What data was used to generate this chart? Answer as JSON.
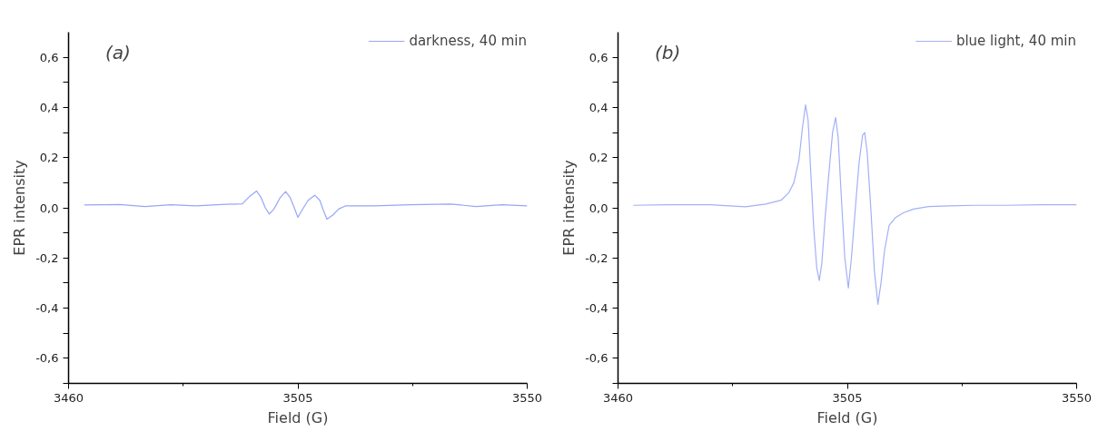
{
  "chart_data": [
    {
      "type": "line",
      "annotations": [
        "(a)"
      ],
      "xlabel": "Field (G)",
      "ylabel": "EPR intensity",
      "legend": "top right",
      "grid": false,
      "xlim": [
        3460,
        3550
      ],
      "xticks": [
        3460,
        3505,
        3550
      ],
      "ylim": [
        -0.7,
        0.7
      ],
      "yticks": [
        {
          "value": -0.7,
          "label": null
        },
        {
          "value": -0.6,
          "label": "-0,6"
        },
        {
          "value": -0.5,
          "label": null
        },
        {
          "value": -0.4,
          "label": "-0,4"
        },
        {
          "value": -0.3,
          "label": null
        },
        {
          "value": -0.2,
          "label": "-0,2"
        },
        {
          "value": -0.1,
          "label": null
        },
        {
          "value": 0,
          "label": "0,0"
        },
        {
          "value": 0.1,
          "label": null
        },
        {
          "value": 0.2,
          "label": "0,2"
        },
        {
          "value": 0.3,
          "label": null
        },
        {
          "value": 0.4,
          "label": "0,4"
        },
        {
          "value": 0.5,
          "label": null
        },
        {
          "value": 0.6,
          "label": "0,6"
        }
      ],
      "series": [
        {
          "name": "darkness, 40 min",
          "color": "#98a6f6",
          "x": [
            3463.1,
            3470,
            3475,
            3480,
            3485,
            3490,
            3494.1,
            3495.5,
            3496.9,
            3497.8,
            3498.6,
            3499.4,
            3500.3,
            3501.5,
            3502.6,
            3503.5,
            3504.3,
            3505.0,
            3505.8,
            3507,
            3508.3,
            3509.3,
            3510,
            3510.7,
            3511.8,
            3513,
            3514.4,
            3520,
            3527,
            3535,
            3540,
            3545,
            3550
          ],
          "values": [
            0.011,
            0.013,
            0.005,
            0.012,
            0.008,
            0.013,
            0.016,
            0.045,
            0.067,
            0.04,
            0.0,
            -0.025,
            -0.005,
            0.04,
            0.065,
            0.04,
            0.0,
            -0.038,
            -0.01,
            0.03,
            0.05,
            0.03,
            -0.01,
            -0.045,
            -0.03,
            -0.005,
            0.008,
            0.008,
            0.012,
            0.015,
            0.005,
            0.012,
            0.008
          ]
        }
      ]
    },
    {
      "type": "line",
      "annotations": [
        "(b)"
      ],
      "xlabel": "Field (G)",
      "ylabel": "EPR intensity",
      "legend": "top right",
      "grid": false,
      "xlim": [
        3460,
        3550
      ],
      "xticks": [
        3460,
        3505,
        3550
      ],
      "ylim": [
        -0.7,
        0.7
      ],
      "yticks": [
        {
          "value": -0.7,
          "label": null
        },
        {
          "value": -0.6,
          "label": "-0,6"
        },
        {
          "value": -0.5,
          "label": null
        },
        {
          "value": -0.4,
          "label": "-0,4"
        },
        {
          "value": -0.3,
          "label": null
        },
        {
          "value": -0.2,
          "label": "-0,2"
        },
        {
          "value": -0.1,
          "label": null
        },
        {
          "value": 0,
          "label": "0,0"
        },
        {
          "value": 0.1,
          "label": null
        },
        {
          "value": 0.2,
          "label": "0,2"
        },
        {
          "value": 0.3,
          "label": null
        },
        {
          "value": 0.4,
          "label": "0,4"
        },
        {
          "value": 0.5,
          "label": null
        },
        {
          "value": 0.6,
          "label": "0,6"
        }
      ],
      "series": [
        {
          "name": "blue light, 40 min",
          "color": "#a3b0f6",
          "x": [
            3463.0,
            3470,
            3478,
            3485,
            3489,
            3492,
            3493.5,
            3494.5,
            3495.5,
            3496.2,
            3496.8,
            3497.3,
            3497.8,
            3498.4,
            3499,
            3499.5,
            3500,
            3500.6,
            3501.3,
            3502.1,
            3502.7,
            3503.2,
            3503.8,
            3504.5,
            3505.2,
            3505.8,
            3506.5,
            3507.3,
            3508.0,
            3508.4,
            3508.9,
            3509.6,
            3510.3,
            3511.0,
            3511.6,
            3512.3,
            3513.2,
            3514.4,
            3516,
            3518,
            3521,
            3525,
            3530,
            3536,
            3543,
            3550
          ],
          "values": [
            0.01,
            0.012,
            0.012,
            0.004,
            0.015,
            0.03,
            0.06,
            0.1,
            0.19,
            0.32,
            0.41,
            0.35,
            0.15,
            -0.08,
            -0.24,
            -0.29,
            -0.22,
            -0.05,
            0.12,
            0.3,
            0.36,
            0.28,
            0.05,
            -0.2,
            -0.32,
            -0.2,
            -0.02,
            0.18,
            0.29,
            0.3,
            0.22,
            0.0,
            -0.25,
            -0.385,
            -0.3,
            -0.17,
            -0.07,
            -0.04,
            -0.02,
            -0.005,
            0.005,
            0.008,
            0.01,
            0.01,
            0.012,
            0.012
          ]
        }
      ]
    }
  ]
}
